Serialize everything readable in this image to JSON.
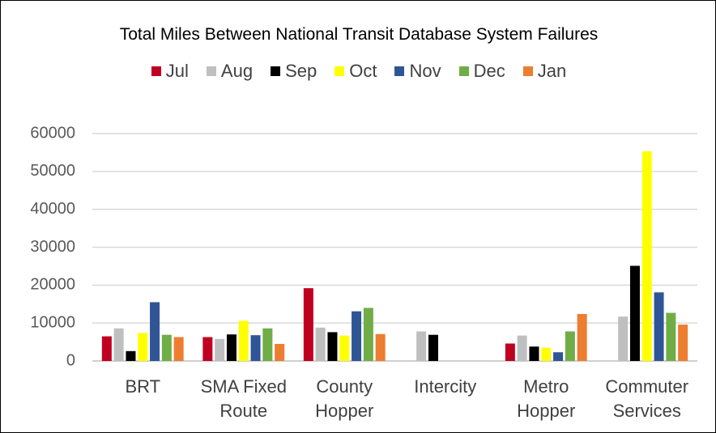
{
  "chart_data": {
    "type": "bar",
    "title": "Total Miles Between National Transit Database System Failures",
    "categories": [
      "BRT",
      "SMA Fixed Route",
      "County Hopper",
      "Intercity",
      "Metro Hopper",
      "Commuter Services"
    ],
    "series": [
      {
        "name": "Jul",
        "color": "#c00020",
        "values": [
          6500,
          6300,
          19200,
          null,
          4600,
          null
        ]
      },
      {
        "name": "Aug",
        "color": "#bfbfbf",
        "values": [
          8600,
          5800,
          8800,
          7800,
          6700,
          11700
        ]
      },
      {
        "name": "Sep",
        "color": "#000000",
        "values": [
          2600,
          7000,
          7600,
          6900,
          3800,
          25100
        ]
      },
      {
        "name": "Oct",
        "color": "#ffff00",
        "values": [
          7400,
          10600,
          6700,
          null,
          3500,
          55300
        ]
      },
      {
        "name": "Nov",
        "color": "#2f5597",
        "values": [
          15500,
          6800,
          13100,
          null,
          2300,
          18100
        ]
      },
      {
        "name": "Dec",
        "color": "#70ad47",
        "values": [
          6900,
          8600,
          14000,
          null,
          7800,
          12700
        ]
      },
      {
        "name": "Jan",
        "color": "#ed7d31",
        "values": [
          6300,
          4500,
          7100,
          null,
          12400,
          9600
        ]
      }
    ],
    "ylim": [
      0,
      60000
    ],
    "yticks": [
      0,
      10000,
      20000,
      30000,
      40000,
      50000,
      60000
    ],
    "grid": true
  }
}
